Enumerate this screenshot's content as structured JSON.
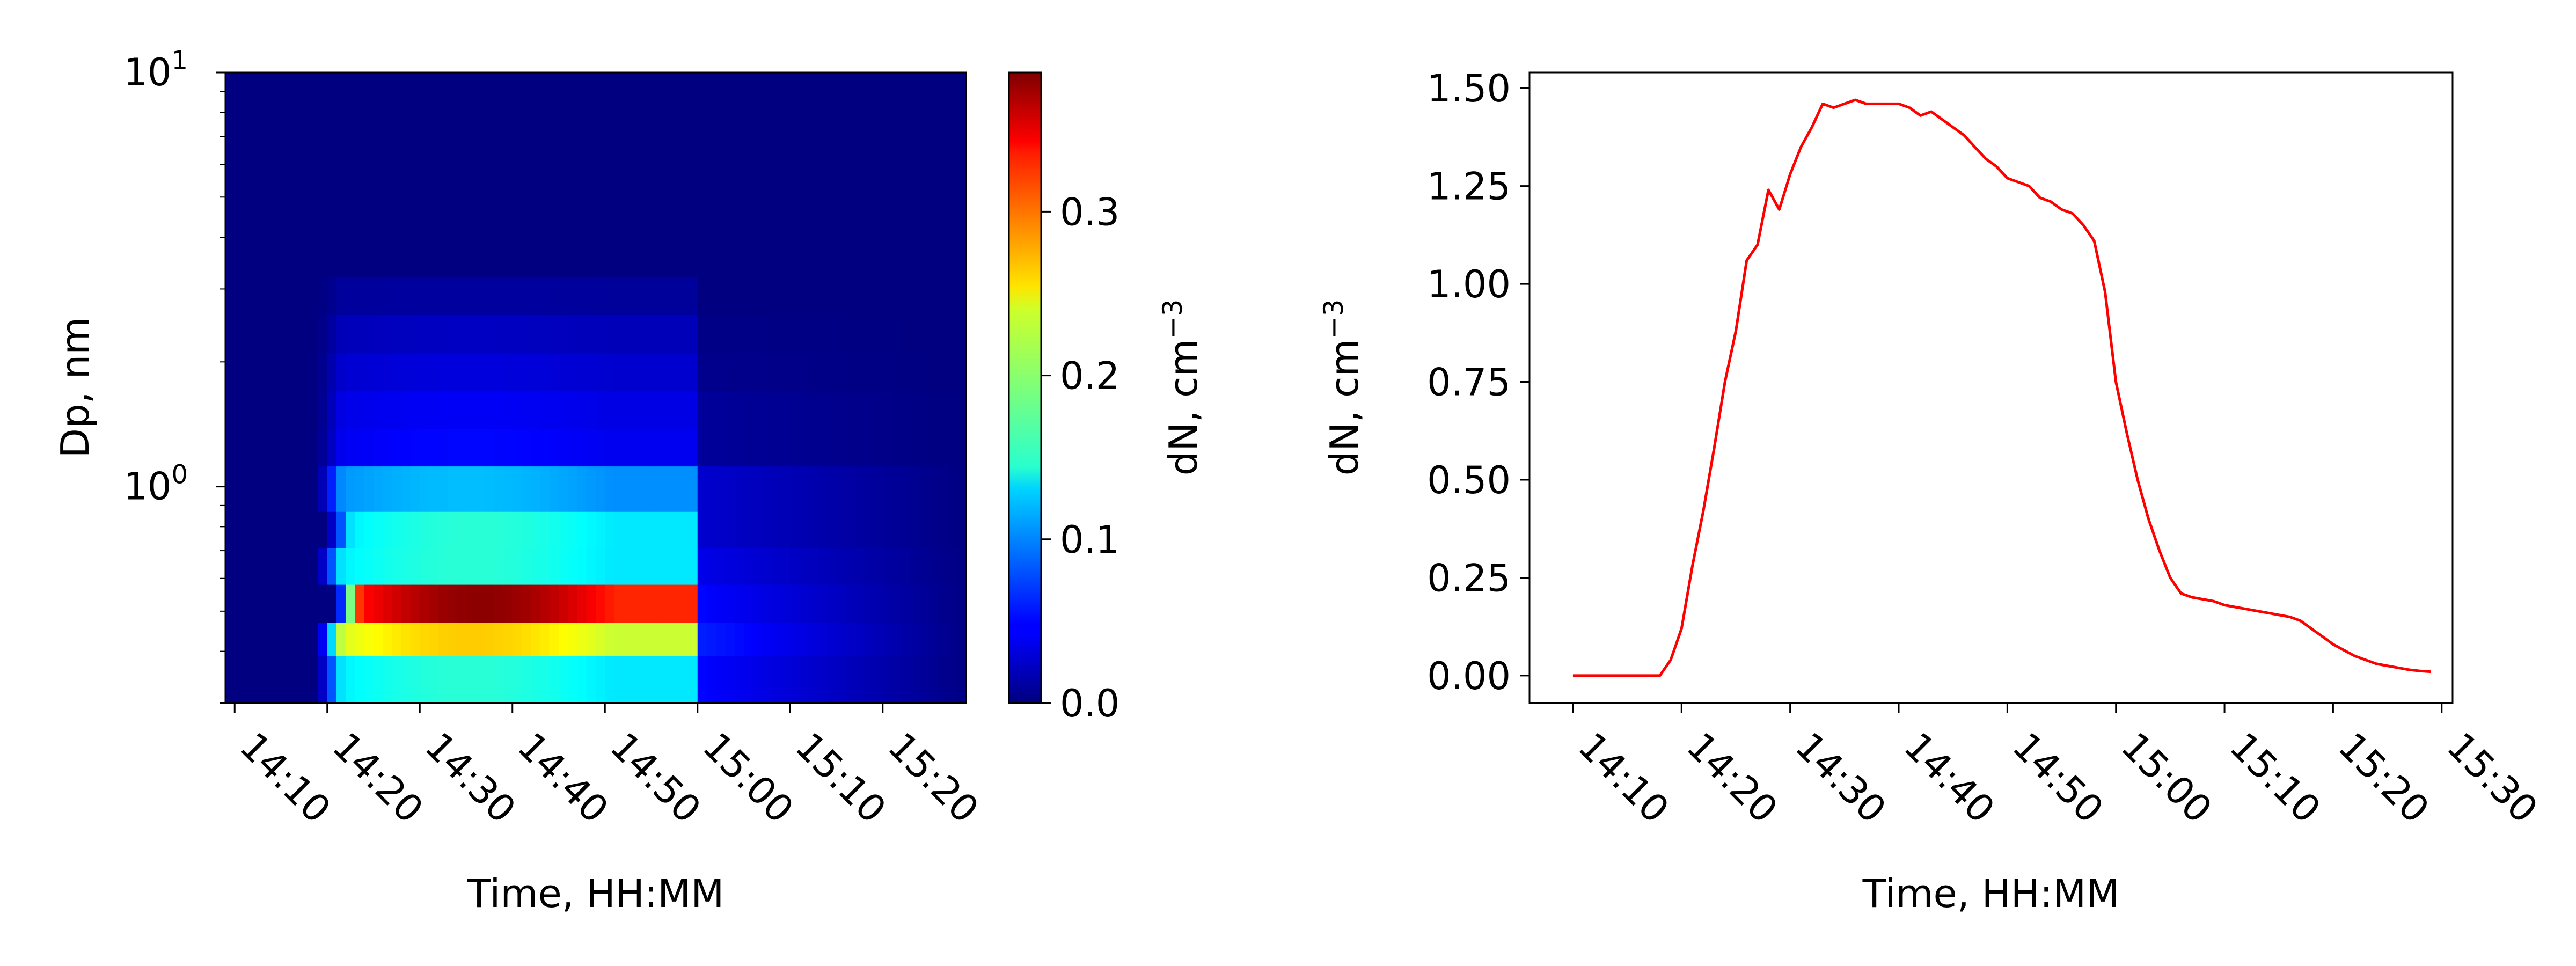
{
  "chart_data": [
    {
      "type": "heatmap",
      "xlabel": "Time, HH:MM",
      "ylabel": "Dp, nm",
      "x_ticks": [
        "14:10",
        "14:20",
        "14:30",
        "14:40",
        "14:50",
        "15:00",
        "15:10",
        "15:20"
      ],
      "x_range": [
        "14:09",
        "15:29"
      ],
      "y_scale": "log",
      "y_range": [
        0.3,
        10
      ],
      "y_ticks": [
        {
          "value": 1,
          "base": "10",
          "exp": "0"
        },
        {
          "value": 10,
          "base": "10",
          "exp": "1"
        }
      ],
      "y_bins": [
        0.3,
        0.39,
        0.47,
        0.58,
        0.71,
        0.87,
        1.12,
        1.38,
        1.7,
        2.1,
        2.6,
        3.2,
        10.0
      ],
      "rows": [
        {
          "peak": 0.16,
          "start": "14:20",
          "end": "15:00",
          "tail": 0.05
        },
        {
          "peak": 0.26,
          "start": "14:20",
          "end": "15:00",
          "tail": 0.06
        },
        {
          "peak": 0.38,
          "start": "14:22",
          "end": "15:00",
          "tail": 0.05
        },
        {
          "peak": 0.16,
          "start": "14:20",
          "end": "15:00",
          "tail": 0.04
        },
        {
          "peak": 0.16,
          "start": "14:21",
          "end": "15:00",
          "tail": 0.03
        },
        {
          "peak": 0.12,
          "start": "14:20",
          "end": "15:00",
          "tail": 0.03
        },
        {
          "peak": 0.05,
          "start": "14:20",
          "end": "15:00",
          "tail": 0.01
        },
        {
          "peak": 0.045,
          "start": "14:20",
          "end": "15:00",
          "tail": 0.01
        },
        {
          "peak": 0.035,
          "start": "14:20",
          "end": "15:00",
          "tail": 0.005
        },
        {
          "peak": 0.025,
          "start": "14:20",
          "end": "15:00",
          "tail": 0.003
        },
        {
          "peak": 0.012,
          "start": "14:20",
          "end": "15:00",
          "tail": 0.0
        },
        {
          "peak": 0.0,
          "start": "14:20",
          "end": "15:00",
          "tail": 0.0
        }
      ],
      "colorbar": {
        "label": "dN, cm",
        "label_exp": "−3",
        "range": [
          0,
          0.385
        ],
        "ticks": [
          "0.0",
          "0.1",
          "0.2",
          "0.3"
        ],
        "tick_values": [
          0,
          0.1,
          0.2,
          0.3
        ],
        "colormap": "jet"
      }
    },
    {
      "type": "line",
      "xlabel": "Time, HH:MM",
      "ylabel": "dN, cm",
      "ylabel_exp": "−3",
      "x_ticks": [
        "14:10",
        "14:20",
        "14:30",
        "14:40",
        "14:50",
        "15:00",
        "15:10",
        "15:20",
        "15:30"
      ],
      "x_range": [
        "14:06",
        "15:31"
      ],
      "ylim": [
        -0.07,
        1.54
      ],
      "y_ticks": [
        "0.00",
        "0.25",
        "0.50",
        "0.75",
        "1.00",
        "1.25",
        "1.50"
      ],
      "y_tick_values": [
        0,
        0.25,
        0.5,
        0.75,
        1.0,
        1.25,
        1.5
      ],
      "series": [
        {
          "color": "#ff0000",
          "x": [
            "14:10",
            "14:18",
            "14:19",
            "14:20",
            "14:21",
            "14:22",
            "14:23",
            "14:24",
            "14:25",
            "14:26",
            "14:27",
            "14:28",
            "14:29",
            "14:30",
            "14:31",
            "14:32",
            "14:33",
            "14:34",
            "14:35",
            "14:36",
            "14:37",
            "14:38",
            "14:39",
            "14:40",
            "14:41",
            "14:42",
            "14:43",
            "14:44",
            "14:45",
            "14:46",
            "14:47",
            "14:48",
            "14:49",
            "14:50",
            "14:51",
            "14:52",
            "14:53",
            "14:54",
            "14:55",
            "14:56",
            "14:57",
            "14:58",
            "14:59",
            "15:00",
            "15:01",
            "15:02",
            "15:03",
            "15:04",
            "15:05",
            "15:06",
            "15:07",
            "15:08",
            "15:09",
            "15:10",
            "15:11",
            "15:12",
            "15:13",
            "15:14",
            "15:15",
            "15:16",
            "15:17",
            "15:18",
            "15:19",
            "15:20",
            "15:21",
            "15:22",
            "15:23",
            "15:24",
            "15:25",
            "15:26",
            "15:27",
            "15:28",
            "15:29"
          ],
          "values": [
            0.0,
            0.0,
            0.04,
            0.12,
            0.28,
            0.42,
            0.58,
            0.75,
            0.88,
            1.06,
            1.1,
            1.24,
            1.19,
            1.28,
            1.35,
            1.4,
            1.46,
            1.45,
            1.46,
            1.47,
            1.46,
            1.46,
            1.46,
            1.46,
            1.45,
            1.43,
            1.44,
            1.42,
            1.4,
            1.38,
            1.35,
            1.32,
            1.3,
            1.27,
            1.26,
            1.25,
            1.22,
            1.21,
            1.19,
            1.18,
            1.15,
            1.11,
            0.98,
            0.75,
            0.62,
            0.5,
            0.4,
            0.32,
            0.25,
            0.21,
            0.2,
            0.195,
            0.19,
            0.18,
            0.175,
            0.17,
            0.165,
            0.16,
            0.155,
            0.15,
            0.14,
            0.12,
            0.1,
            0.08,
            0.065,
            0.05,
            0.04,
            0.03,
            0.025,
            0.02,
            0.015,
            0.012,
            0.01
          ]
        }
      ]
    }
  ]
}
